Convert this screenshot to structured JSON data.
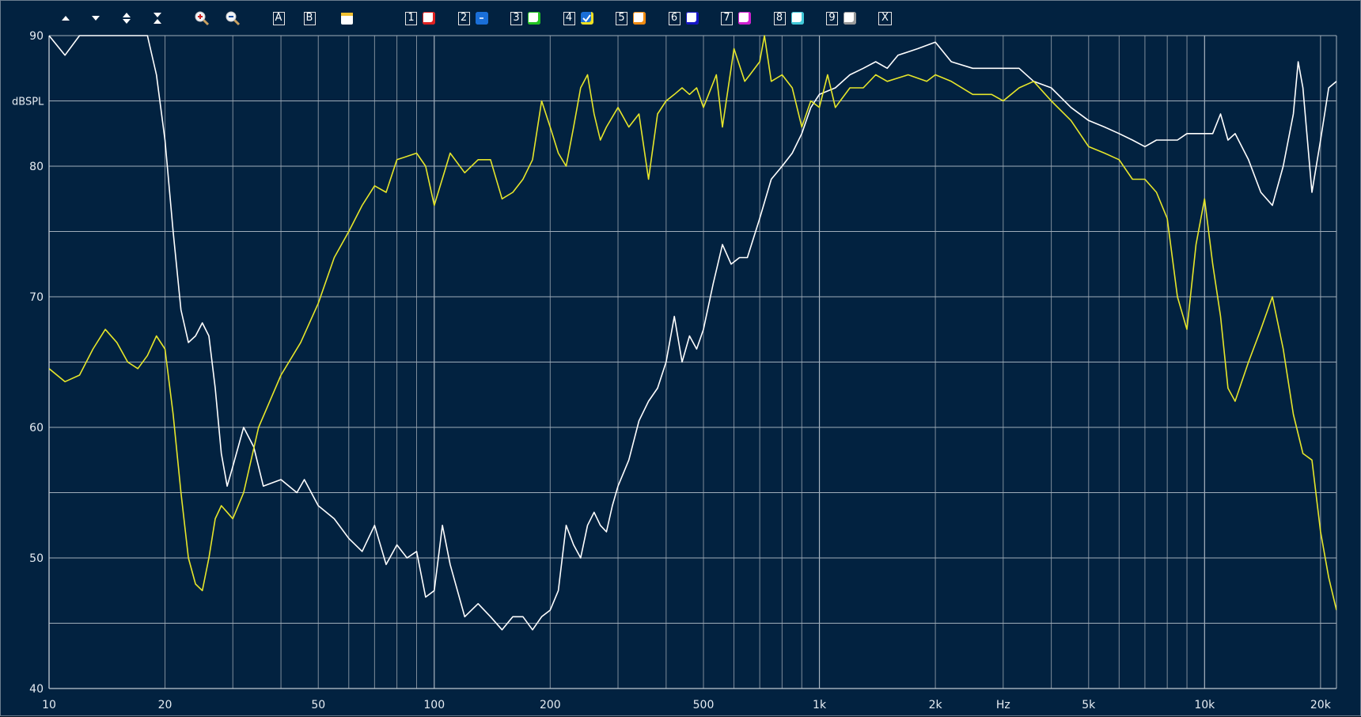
{
  "toolbar": {
    "buttons": [
      {
        "name": "move-up-icon"
      },
      {
        "name": "move-down-icon"
      },
      {
        "name": "expand-vertical-icon"
      },
      {
        "name": "compress-vertical-icon"
      },
      {
        "name": "zoom-in-icon"
      },
      {
        "name": "zoom-out-icon"
      },
      {
        "name": "cursor-a-button",
        "label": "A"
      },
      {
        "name": "cursor-b-button",
        "label": "B"
      },
      {
        "name": "overlay-icon"
      }
    ],
    "curves": [
      {
        "label": "1",
        "color": "#e02020",
        "checked": false
      },
      {
        "label": "2",
        "color": "#1a6fd8",
        "checked": false,
        "minus": true
      },
      {
        "label": "3",
        "color": "#22c422",
        "checked": false
      },
      {
        "label": "4",
        "color": "#f0e020",
        "checked": true
      },
      {
        "label": "5",
        "color": "#f08a10",
        "checked": false
      },
      {
        "label": "6",
        "color": "#1515c8",
        "checked": false
      },
      {
        "label": "7",
        "color": "#d020d0",
        "checked": false
      },
      {
        "label": "8",
        "color": "#40c8d8",
        "checked": false
      },
      {
        "label": "9",
        "color": "#9a9a9a",
        "checked": false
      }
    ],
    "close_label": "X"
  },
  "chart_data": {
    "type": "line",
    "xscale": "log",
    "xlim": [
      10,
      22000
    ],
    "ylim": [
      40,
      90
    ],
    "ylabel": "dBSPL",
    "xunit": "Hz",
    "grid": true,
    "xticks": [
      {
        "value": 10,
        "label": "10"
      },
      {
        "value": 20,
        "label": "20"
      },
      {
        "value": 50,
        "label": "50"
      },
      {
        "value": 100,
        "label": "100"
      },
      {
        "value": 200,
        "label": "200"
      },
      {
        "value": 500,
        "label": "500"
      },
      {
        "value": 1000,
        "label": "1k"
      },
      {
        "value": 2000,
        "label": "2k"
      },
      {
        "value": 5000,
        "label": "5k"
      },
      {
        "value": 10000,
        "label": "10k"
      },
      {
        "value": 20000,
        "label": "20k"
      }
    ],
    "yticks": [
      {
        "value": 90,
        "label": "90"
      },
      {
        "value": 80,
        "label": "80"
      },
      {
        "value": 70,
        "label": "70"
      },
      {
        "value": 60,
        "label": "60"
      },
      {
        "value": 50,
        "label": "50"
      },
      {
        "value": 40,
        "label": "40"
      }
    ],
    "series": [
      {
        "color": "#ffffff",
        "points": [
          [
            10,
            90
          ],
          [
            11,
            88.5
          ],
          [
            12,
            90
          ],
          [
            14,
            90
          ],
          [
            16,
            90
          ],
          [
            18,
            90
          ],
          [
            19,
            87
          ],
          [
            20,
            82
          ],
          [
            21,
            75
          ],
          [
            22,
            69
          ],
          [
            23,
            66.5
          ],
          [
            24,
            67
          ],
          [
            25,
            68
          ],
          [
            26,
            67
          ],
          [
            27,
            63
          ],
          [
            28,
            58
          ],
          [
            29,
            55.5
          ],
          [
            30,
            57
          ],
          [
            32,
            60
          ],
          [
            34,
            58.5
          ],
          [
            36,
            55.5
          ],
          [
            40,
            56
          ],
          [
            44,
            55
          ],
          [
            46,
            56
          ],
          [
            50,
            54
          ],
          [
            55,
            53
          ],
          [
            60,
            51.5
          ],
          [
            65,
            50.5
          ],
          [
            70,
            52.5
          ],
          [
            75,
            49.5
          ],
          [
            80,
            51
          ],
          [
            85,
            50
          ],
          [
            90,
            50.5
          ],
          [
            95,
            47
          ],
          [
            100,
            47.5
          ],
          [
            105,
            52.5
          ],
          [
            110,
            49.5
          ],
          [
            120,
            45.5
          ],
          [
            130,
            46.5
          ],
          [
            140,
            45.5
          ],
          [
            150,
            44.5
          ],
          [
            160,
            45.5
          ],
          [
            170,
            45.5
          ],
          [
            180,
            44.5
          ],
          [
            190,
            45.5
          ],
          [
            200,
            46
          ],
          [
            210,
            47.5
          ],
          [
            220,
            52.5
          ],
          [
            230,
            51
          ],
          [
            240,
            50
          ],
          [
            250,
            52.5
          ],
          [
            260,
            53.5
          ],
          [
            270,
            52.5
          ],
          [
            280,
            52
          ],
          [
            290,
            54
          ],
          [
            300,
            55.5
          ],
          [
            320,
            57.5
          ],
          [
            340,
            60.5
          ],
          [
            360,
            62
          ],
          [
            380,
            63
          ],
          [
            400,
            65
          ],
          [
            420,
            68.5
          ],
          [
            440,
            65
          ],
          [
            460,
            67
          ],
          [
            480,
            66
          ],
          [
            500,
            67.5
          ],
          [
            530,
            71
          ],
          [
            560,
            74
          ],
          [
            590,
            72.5
          ],
          [
            620,
            73
          ],
          [
            650,
            73
          ],
          [
            700,
            76
          ],
          [
            750,
            79
          ],
          [
            800,
            80
          ],
          [
            850,
            81
          ],
          [
            900,
            82.5
          ],
          [
            950,
            84.5
          ],
          [
            1000,
            85.5
          ],
          [
            1100,
            86
          ],
          [
            1200,
            87
          ],
          [
            1300,
            87.5
          ],
          [
            1400,
            88
          ],
          [
            1500,
            87.5
          ],
          [
            1600,
            88.5
          ],
          [
            1800,
            89
          ],
          [
            2000,
            89.5
          ],
          [
            2200,
            88
          ],
          [
            2500,
            87.5
          ],
          [
            2800,
            87.5
          ],
          [
            3000,
            87.5
          ],
          [
            3300,
            87.5
          ],
          [
            3600,
            86.5
          ],
          [
            4000,
            86
          ],
          [
            4500,
            84.5
          ],
          [
            5000,
            83.5
          ],
          [
            5500,
            83
          ],
          [
            6000,
            82.5
          ],
          [
            6500,
            82
          ],
          [
            7000,
            81.5
          ],
          [
            7500,
            82
          ],
          [
            8000,
            82
          ],
          [
            8500,
            82
          ],
          [
            9000,
            82.5
          ],
          [
            9500,
            82.5
          ],
          [
            10000,
            82.5
          ],
          [
            10500,
            82.5
          ],
          [
            11000,
            84
          ],
          [
            11500,
            82
          ],
          [
            12000,
            82.5
          ],
          [
            13000,
            80.5
          ],
          [
            14000,
            78
          ],
          [
            15000,
            77
          ],
          [
            16000,
            80
          ],
          [
            17000,
            84
          ],
          [
            17500,
            88
          ],
          [
            18000,
            86
          ],
          [
            19000,
            78
          ],
          [
            20000,
            82
          ],
          [
            21000,
            86
          ],
          [
            22000,
            86.5
          ]
        ]
      },
      {
        "color": "#e6e62a",
        "points": [
          [
            10,
            64.5
          ],
          [
            11,
            63.5
          ],
          [
            12,
            64
          ],
          [
            13,
            66
          ],
          [
            14,
            67.5
          ],
          [
            15,
            66.5
          ],
          [
            16,
            65
          ],
          [
            17,
            64.5
          ],
          [
            18,
            65.5
          ],
          [
            19,
            67
          ],
          [
            20,
            66
          ],
          [
            21,
            61
          ],
          [
            22,
            55
          ],
          [
            23,
            50
          ],
          [
            24,
            48
          ],
          [
            25,
            47.5
          ],
          [
            26,
            50
          ],
          [
            27,
            53
          ],
          [
            28,
            54
          ],
          [
            29,
            53.5
          ],
          [
            30,
            53
          ],
          [
            32,
            55
          ],
          [
            35,
            60
          ],
          [
            40,
            64
          ],
          [
            45,
            66.5
          ],
          [
            50,
            69.5
          ],
          [
            55,
            73
          ],
          [
            60,
            75
          ],
          [
            65,
            77
          ],
          [
            70,
            78.5
          ],
          [
            75,
            78
          ],
          [
            80,
            80.5
          ],
          [
            90,
            81
          ],
          [
            95,
            80
          ],
          [
            100,
            77
          ],
          [
            110,
            81
          ],
          [
            120,
            79.5
          ],
          [
            130,
            80.5
          ],
          [
            140,
            80.5
          ],
          [
            150,
            77.5
          ],
          [
            160,
            78
          ],
          [
            170,
            79
          ],
          [
            180,
            80.5
          ],
          [
            190,
            85
          ],
          [
            200,
            83
          ],
          [
            210,
            81
          ],
          [
            220,
            80
          ],
          [
            230,
            83
          ],
          [
            240,
            86
          ],
          [
            250,
            87
          ],
          [
            260,
            84
          ],
          [
            270,
            82
          ],
          [
            280,
            83
          ],
          [
            300,
            84.5
          ],
          [
            320,
            83
          ],
          [
            340,
            84
          ],
          [
            360,
            79
          ],
          [
            380,
            84
          ],
          [
            400,
            85
          ],
          [
            420,
            85.5
          ],
          [
            440,
            86
          ],
          [
            460,
            85.5
          ],
          [
            480,
            86
          ],
          [
            500,
            84.5
          ],
          [
            540,
            87
          ],
          [
            560,
            83
          ],
          [
            600,
            89
          ],
          [
            640,
            86.5
          ],
          [
            660,
            87
          ],
          [
            700,
            88
          ],
          [
            720,
            90
          ],
          [
            750,
            86.5
          ],
          [
            800,
            87
          ],
          [
            850,
            86
          ],
          [
            900,
            83
          ],
          [
            950,
            85
          ],
          [
            1000,
            84.5
          ],
          [
            1050,
            87
          ],
          [
            1100,
            84.5
          ],
          [
            1200,
            86
          ],
          [
            1300,
            86
          ],
          [
            1400,
            87
          ],
          [
            1500,
            86.5
          ],
          [
            1700,
            87
          ],
          [
            1900,
            86.5
          ],
          [
            2000,
            87
          ],
          [
            2200,
            86.5
          ],
          [
            2500,
            85.5
          ],
          [
            2800,
            85.5
          ],
          [
            3000,
            85
          ],
          [
            3300,
            86
          ],
          [
            3600,
            86.5
          ],
          [
            4000,
            85
          ],
          [
            4500,
            83.5
          ],
          [
            5000,
            81.5
          ],
          [
            5500,
            81
          ],
          [
            6000,
            80.5
          ],
          [
            6500,
            79
          ],
          [
            7000,
            79
          ],
          [
            7500,
            78
          ],
          [
            8000,
            76
          ],
          [
            8500,
            70
          ],
          [
            9000,
            67.5
          ],
          [
            9500,
            74
          ],
          [
            10000,
            77.5
          ],
          [
            10500,
            72.5
          ],
          [
            11000,
            68.5
          ],
          [
            11500,
            63
          ],
          [
            12000,
            62
          ],
          [
            13000,
            65
          ],
          [
            14000,
            67.5
          ],
          [
            15000,
            70
          ],
          [
            16000,
            66
          ],
          [
            17000,
            61
          ],
          [
            18000,
            58
          ],
          [
            19000,
            57.5
          ],
          [
            20000,
            52
          ],
          [
            21000,
            48.5
          ],
          [
            22000,
            46
          ]
        ]
      }
    ]
  }
}
